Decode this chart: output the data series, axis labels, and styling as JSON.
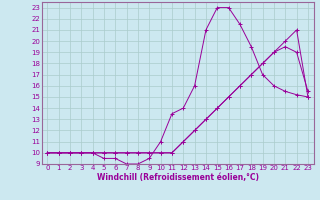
{
  "xlabel": "Windchill (Refroidissement éolien,°C)",
  "bg_color": "#cce8f0",
  "grid_color": "#aacccc",
  "line_color": "#990099",
  "xlim": [
    -0.5,
    23.5
  ],
  "ylim": [
    9,
    23.5
  ],
  "yticks": [
    9,
    10,
    11,
    12,
    13,
    14,
    15,
    16,
    17,
    18,
    19,
    20,
    21,
    22,
    23
  ],
  "xticks": [
    0,
    1,
    2,
    3,
    4,
    5,
    6,
    7,
    8,
    9,
    10,
    11,
    12,
    13,
    14,
    15,
    16,
    17,
    18,
    19,
    20,
    21,
    22,
    23
  ],
  "line1_x": [
    0,
    1,
    2,
    3,
    4,
    5,
    6,
    7,
    8,
    9,
    10,
    11,
    12,
    13,
    14,
    15,
    16,
    17,
    18,
    19,
    20,
    21,
    22,
    23
  ],
  "line1_y": [
    10,
    10,
    10,
    10,
    10,
    9.5,
    9.5,
    9,
    9,
    9.5,
    11,
    13.5,
    14,
    16,
    21,
    23,
    23,
    21.5,
    19.5,
    17,
    16,
    15.5,
    15.2,
    15
  ],
  "line2_x": [
    0,
    1,
    2,
    3,
    4,
    5,
    6,
    7,
    8,
    9,
    10,
    11,
    12,
    13,
    14,
    15,
    16,
    17,
    18,
    19,
    20,
    21,
    22,
    23
  ],
  "line2_y": [
    10,
    10,
    10,
    10,
    10,
    10,
    10,
    10,
    10,
    10,
    10,
    10,
    11,
    12,
    13,
    14,
    15,
    16,
    17,
    18,
    19,
    19.5,
    19,
    15.5
  ],
  "line3_x": [
    0,
    1,
    2,
    3,
    4,
    5,
    6,
    7,
    8,
    9,
    10,
    11,
    12,
    13,
    14,
    15,
    16,
    17,
    18,
    19,
    20,
    21,
    22,
    23
  ],
  "line3_y": [
    10,
    10,
    10,
    10,
    10,
    10,
    10,
    10,
    10,
    10,
    10,
    10,
    11,
    12,
    13,
    14,
    15,
    16,
    17,
    18,
    19,
    20,
    21,
    15
  ],
  "tick_fontsize": 5.0,
  "xlabel_fontsize": 5.5,
  "spine_color": "#996699"
}
